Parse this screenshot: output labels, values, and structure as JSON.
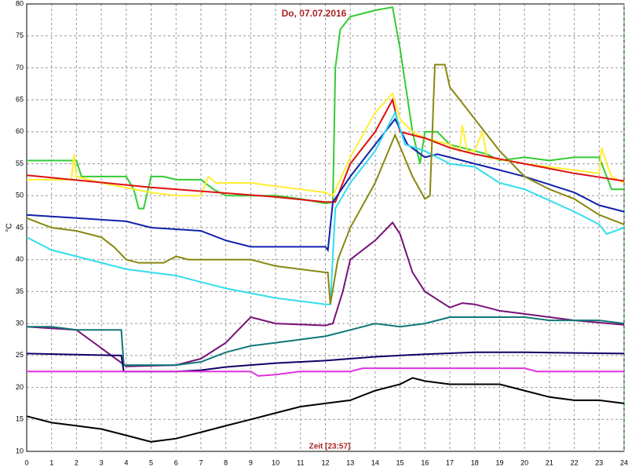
{
  "chart_data": {
    "type": "line",
    "title": "Do, 07.07.2016",
    "xlabel": "Zeit [23:57]",
    "ylabel": "°C",
    "xlim": [
      0,
      24
    ],
    "ylim": [
      10,
      80
    ],
    "xticks": [
      0,
      1,
      2,
      3,
      4,
      5,
      6,
      7,
      8,
      9,
      10,
      11,
      12,
      13,
      14,
      15,
      16,
      17,
      18,
      19,
      20,
      21,
      22,
      23,
      24
    ],
    "yticks": [
      10,
      15,
      20,
      25,
      30,
      35,
      40,
      45,
      50,
      55,
      60,
      65,
      70,
      75,
      80
    ],
    "grid": true,
    "series": [
      {
        "color": "#33cc33",
        "x": [
          0,
          2,
          2.2,
          4,
          4.3,
          4.5,
          4.7,
          5,
          5.5,
          6,
          7,
          7.5,
          8,
          9,
          10,
          11,
          12,
          12.3,
          12.4,
          12.6,
          13,
          14,
          14.7,
          15,
          15.5,
          15.8,
          16,
          16.5,
          17,
          18,
          18.5,
          19,
          20,
          21,
          22,
          23,
          23.3,
          23.5,
          24
        ],
        "values": [
          55.5,
          55.5,
          53,
          53,
          51,
          48,
          48,
          53,
          53,
          52.5,
          52.5,
          51,
          50,
          50,
          50,
          49.5,
          48.8,
          49,
          70,
          76,
          78,
          79,
          79.5,
          73,
          60,
          55,
          60,
          60,
          58,
          57,
          56.5,
          55.5,
          56,
          55.5,
          56,
          56,
          53,
          51,
          51
        ]
      },
      {
        "color": "#ffee33",
        "x": [
          0,
          1.8,
          1.9,
          2,
          3,
          5,
          6,
          7,
          7.3,
          7.6,
          9,
          10,
          11,
          12,
          12.3,
          13,
          14,
          14.7,
          15,
          15.5,
          16,
          17,
          17.4,
          17.5,
          17.7,
          18,
          18.3,
          18.5,
          20,
          22,
          23,
          23.1,
          23.3,
          23.5,
          24
        ],
        "values": [
          52.5,
          52.5,
          56.5,
          53,
          52,
          50.5,
          50,
          50,
          53,
          52,
          52,
          51.5,
          51,
          50.5,
          50,
          56,
          63,
          66,
          62,
          60,
          59,
          58,
          57,
          61,
          57,
          57,
          60,
          56,
          55,
          54,
          53.5,
          57.5,
          55,
          53,
          52
        ]
      },
      {
        "color": "#dd1111",
        "x": [
          0,
          5,
          10,
          12,
          12.4,
          13,
          14,
          14.7,
          15,
          16,
          17,
          18,
          20,
          22,
          24
        ],
        "values": [
          53.2,
          51.3,
          49.8,
          49,
          49,
          55,
          60,
          65,
          60,
          59,
          57.5,
          56.5,
          55,
          53.5,
          52.3
        ]
      },
      {
        "color": "#1122aa",
        "x": [
          0,
          2,
          4,
          5,
          7,
          8,
          9,
          11,
          12,
          12.1,
          12.3,
          13,
          14,
          14.8,
          15.3,
          16,
          16.5,
          17.5,
          18,
          19,
          20,
          22,
          23,
          24
        ],
        "values": [
          47,
          46.5,
          46,
          45,
          44.5,
          43,
          42,
          42,
          42,
          41.5,
          49,
          53,
          58,
          62,
          58,
          56,
          56.5,
          55.5,
          55,
          54,
          53,
          50.5,
          48.5,
          47.5
        ]
      },
      {
        "color": "#33ddee",
        "x": [
          0,
          1,
          2,
          4,
          6,
          8,
          10,
          12,
          12.2,
          12.4,
          13,
          14,
          14.8,
          15.2,
          16,
          17,
          18,
          19,
          20,
          22,
          23,
          23.3,
          24
        ],
        "values": [
          43.5,
          41.5,
          40.5,
          38.5,
          37.5,
          35.5,
          34,
          33,
          33,
          48,
          52,
          57,
          63,
          58,
          57,
          55,
          54.5,
          52,
          51,
          47.5,
          45.5,
          44,
          45
        ]
      },
      {
        "color": "#888811",
        "x": [
          0,
          1,
          2,
          3,
          3.5,
          4,
          4.5,
          5.5,
          6,
          6.5,
          9,
          10,
          12,
          12.1,
          12.2,
          12.5,
          13,
          14,
          14.8,
          15.5,
          16,
          16.2,
          16.4,
          16.8,
          17,
          18,
          19,
          20,
          21,
          22,
          23,
          24
        ],
        "values": [
          46.5,
          45,
          44.5,
          43.5,
          42,
          40,
          39.5,
          39.5,
          40.5,
          40,
          40,
          39,
          38,
          38,
          33,
          40,
          45,
          52,
          59.5,
          53,
          49.5,
          50,
          70.5,
          70.5,
          67,
          62,
          57,
          53,
          51,
          49.5,
          47,
          45.5
        ]
      },
      {
        "color": "#771177",
        "x": [
          0,
          2,
          4,
          6,
          7,
          8,
          8.5,
          9,
          10,
          12,
          12.3,
          12.7,
          13,
          14,
          14.7,
          15,
          15.5,
          16,
          17,
          17.5,
          18,
          19,
          20,
          22,
          24
        ],
        "values": [
          29.5,
          29,
          23.3,
          23.5,
          24.5,
          27,
          29,
          31,
          30,
          29.7,
          30,
          35,
          40,
          43,
          45.8,
          44,
          38,
          35,
          32.5,
          33.2,
          33,
          32,
          31.5,
          30.5,
          29.8
        ]
      },
      {
        "color": "#117777",
        "x": [
          0,
          1,
          2,
          3.8,
          3.9,
          6,
          7,
          8,
          9,
          10,
          11,
          12,
          13,
          14,
          15,
          16,
          17,
          18,
          20,
          21,
          23,
          24
        ],
        "values": [
          29.5,
          29.5,
          29,
          29,
          23.5,
          23.5,
          24,
          25.5,
          26.5,
          27,
          27.5,
          28,
          29,
          30,
          29.5,
          30,
          31,
          31,
          31,
          30.5,
          30.5,
          30
        ]
      },
      {
        "color": "#110066",
        "x": [
          0,
          3.8,
          3.9,
          6,
          7,
          8,
          10,
          12,
          14,
          16,
          18,
          20,
          24
        ],
        "values": [
          25.3,
          25,
          22.5,
          22.5,
          22.7,
          23.2,
          23.8,
          24.2,
          24.8,
          25.2,
          25.5,
          25.5,
          25.3
        ]
      },
      {
        "color": "#dd33dd",
        "x": [
          0,
          9,
          9.3,
          10,
          11,
          13,
          13.5,
          16,
          20,
          20.5,
          21,
          24
        ],
        "values": [
          22.5,
          22.5,
          21.8,
          22,
          22.5,
          22.5,
          23,
          23,
          23,
          22.5,
          22.5,
          22.5
        ]
      },
      {
        "color": "#000000",
        "x": [
          0,
          1,
          2,
          3,
          4,
          5,
          6,
          7,
          8,
          9,
          10,
          11,
          12,
          13,
          14,
          15,
          15.5,
          16,
          17,
          18,
          19,
          20,
          21,
          22,
          23,
          24
        ],
        "values": [
          15.5,
          14.5,
          14,
          13.5,
          12.5,
          11.5,
          12,
          13,
          14,
          15,
          16,
          17,
          17.5,
          18,
          19.5,
          20.5,
          21.5,
          21,
          20.5,
          20.5,
          20.5,
          19.5,
          18.5,
          18,
          18,
          17.5
        ]
      }
    ]
  }
}
